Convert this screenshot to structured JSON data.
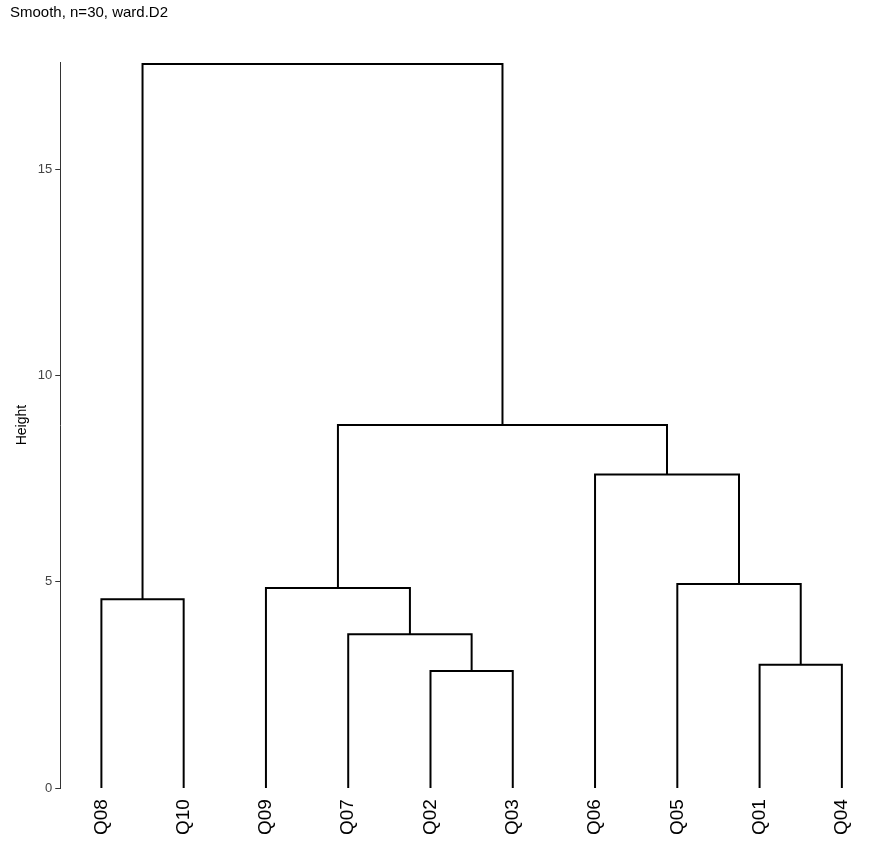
{
  "chart_data": {
    "type": "dendrogram",
    "title": "Smooth, n=30, ward.D2",
    "y_label": "Height",
    "tree": {
      "height": 17.55,
      "children": [
        {
          "height": 4.58,
          "children": [
            "Q08",
            "Q10"
          ]
        },
        {
          "height": 8.8,
          "children": [
            {
              "height": 4.85,
              "children": [
                "Q09",
                {
                  "height": 3.73,
                  "children": [
                    "Q07",
                    {
                      "height": 2.84,
                      "children": [
                        "Q02",
                        "Q03"
                      ]
                    }
                  ]
                }
              ]
            },
            {
              "height": 7.6,
              "children": [
                "Q06",
                {
                  "height": 4.95,
                  "children": [
                    "Q05",
                    {
                      "height": 2.99,
                      "children": [
                        "Q01",
                        "Q04"
                      ]
                    }
                  ]
                }
              ]
            }
          ]
        }
      ]
    },
    "ylim": [
      0,
      17.6
    ],
    "yticks": [
      0,
      5,
      10,
      15
    ],
    "grid": false,
    "color": "#000000"
  }
}
